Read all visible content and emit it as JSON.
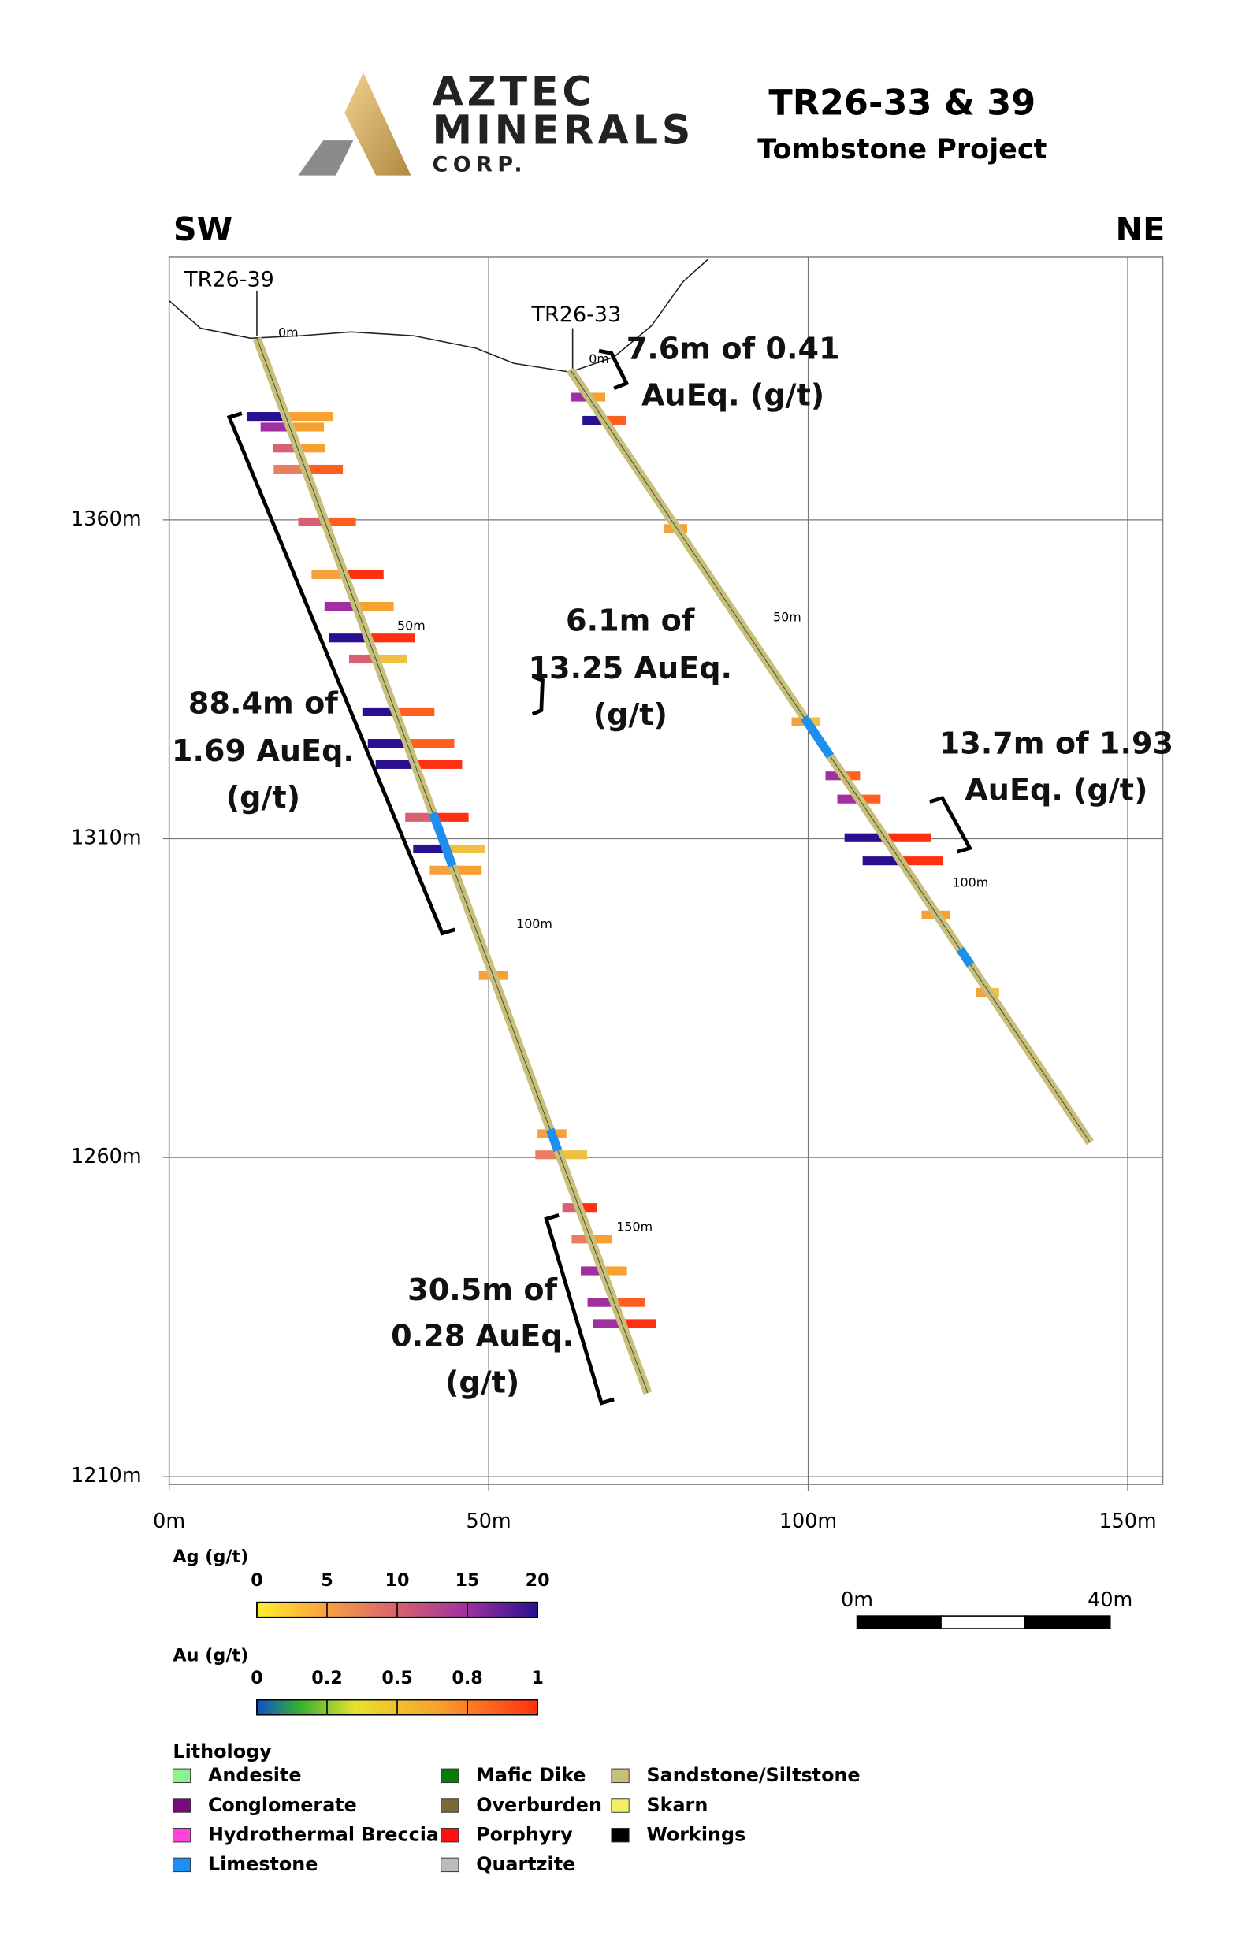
{
  "header": {
    "company": [
      "AZTEC",
      "MINERALS",
      "CORP."
    ],
    "title": "TR26-33 & 39",
    "subtitle": "Tombstone Project"
  },
  "section": {
    "left_direction": "SW",
    "right_direction": "NE",
    "elevation_ticks": [
      {
        "value": 1360,
        "label": "1360m"
      },
      {
        "value": 1310,
        "label": "1310m"
      },
      {
        "value": 1260,
        "label": "1260m"
      },
      {
        "value": 1210,
        "label": "1210m"
      }
    ],
    "distance_ticks": [
      {
        "value": 0,
        "label": "0m"
      },
      {
        "value": 50,
        "label": "50m"
      },
      {
        "value": 100,
        "label": "100m"
      },
      {
        "value": 150,
        "label": "150m"
      }
    ],
    "holes": [
      {
        "name": "TR26-39",
        "depth_labels": [
          "0m",
          "50m",
          "100m",
          "150m"
        ]
      },
      {
        "name": "TR26-33",
        "depth_labels": [
          "0m",
          "50m",
          "100m"
        ]
      }
    ],
    "intercepts": [
      {
        "lines": [
          "7.6m of 0.41",
          "AuEq. (g/t)"
        ]
      },
      {
        "lines": [
          "6.1m of",
          "13.25 AuEq.",
          "(g/t)"
        ]
      },
      {
        "lines": [
          "88.4m of",
          "1.69 AuEq.",
          "(g/t)"
        ]
      },
      {
        "lines": [
          "13.7m of 1.93",
          "AuEq. (g/t)"
        ]
      },
      {
        "lines": [
          "30.5m of",
          "0.28 AuEq.",
          "(g/t)"
        ]
      }
    ]
  },
  "legend": {
    "ag": {
      "title": "Ag (g/t)",
      "ticks": [
        "0",
        "5",
        "10",
        "15",
        "20"
      ]
    },
    "au": {
      "title": "Au (g/t)",
      "ticks": [
        "0",
        "0.2",
        "0.5",
        "0.8",
        "1"
      ]
    },
    "scale_bar": {
      "labels": [
        "0m",
        "40m"
      ]
    },
    "lithology": {
      "title": "Lithology",
      "items": [
        {
          "name": "Andesite",
          "color": "#8ff08f"
        },
        {
          "name": "Conglomerate",
          "color": "#7a0a7a"
        },
        {
          "name": "Hydrothermal Breccia",
          "color": "#ff44dd"
        },
        {
          "name": "Limestone",
          "color": "#1e8ff0"
        },
        {
          "name": "Mafic Dike",
          "color": "#0a7a0a"
        },
        {
          "name": "Overburden",
          "color": "#7a6a3a"
        },
        {
          "name": "Porphyry",
          "color": "#ff1010"
        },
        {
          "name": "Quartzite",
          "color": "#bbbbbb"
        },
        {
          "name": "Sandstone/Siltstone",
          "color": "#c8c078"
        },
        {
          "name": "Skarn",
          "color": "#f0f060"
        },
        {
          "name": "Workings",
          "color": "#000000"
        }
      ]
    }
  }
}
